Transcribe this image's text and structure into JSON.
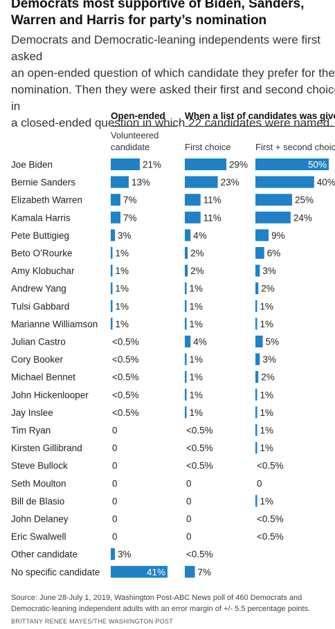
{
  "title": "Democrats most supportive of Biden, Sanders,\nWarren and Harris for party’s nomination",
  "subtitle": "Democrats and Democratic-leaning independents were first asked\nan open-ended question of which candidate they prefer for the\nnomination. Then they were asked their first and second choice in\na closed-ended question in which 22 candidates were named.",
  "chart_data": {
    "type": "bar",
    "groups": [
      {
        "header": "Open-ended"
      },
      {
        "header": "When a list of candidates was given"
      }
    ],
    "categories": [
      "Joe Biden",
      "Bernie Sanders",
      "Elizabeth Warren",
      "Kamala Harris",
      "Pete Buttigieg",
      "Beto O’Rourke",
      "Amy Klobuchar",
      "Andrew Yang",
      "Tulsi Gabbard",
      "Marianne Williamson",
      "Julian Castro",
      "Cory Booker",
      "Michael Bennet",
      "John Hickenlooper",
      "Jay Inslee",
      "Tim Ryan",
      "Kirsten Gillibrand",
      "Steve Bullock",
      "Seth Moulton",
      "Bill de Blasio",
      "John Delaney",
      "Eric Swalwell",
      "Other candidate",
      "No specific candidate"
    ],
    "series": [
      {
        "name": "Volunteered\ncandidate",
        "values": [
          21,
          13,
          7,
          7,
          3,
          1,
          1,
          1,
          1,
          1,
          0.25,
          0.25,
          0.25,
          0.25,
          0.25,
          0,
          0,
          0,
          0,
          0,
          0,
          0,
          3,
          41
        ],
        "labels": [
          "21%",
          "13%",
          "7%",
          "7%",
          "3%",
          "1%",
          "1%",
          "1%",
          "1%",
          "1%",
          "<0.5%",
          "<0.5%",
          "<0.5%",
          "<0.5%",
          "<0.5%",
          "0",
          "0",
          "0",
          "0",
          "0",
          "0",
          "0",
          "3%",
          "41%"
        ]
      },
      {
        "name": "First choice",
        "values": [
          29,
          23,
          11,
          11,
          4,
          2,
          2,
          1,
          1,
          1,
          4,
          1,
          1,
          1,
          1,
          0.25,
          0.25,
          0.25,
          0,
          0,
          0,
          0,
          0.25,
          7
        ],
        "labels": [
          "29%",
          "23%",
          "11%",
          "11%",
          "4%",
          "2%",
          "2%",
          "1%",
          "1%",
          "1%",
          "4%",
          "1%",
          "1%",
          "1%",
          "1%",
          "<0.5%",
          "<0.5%",
          "<0.5%",
          "0",
          "0",
          "0",
          "0",
          "<0.5%",
          "7%"
        ]
      },
      {
        "name": "First + second choice",
        "values": [
          50,
          40,
          25,
          24,
          9,
          6,
          3,
          2,
          1,
          1,
          5,
          3,
          2,
          1,
          1,
          1,
          1,
          0.25,
          0,
          1,
          0.25,
          0.25,
          null,
          null
        ],
        "labels": [
          "50%",
          "40%",
          "25%",
          "24%",
          "9%",
          "6%",
          "3%",
          "2%",
          "1%",
          "1%",
          "5%",
          "3%",
          "2%",
          "1%",
          "1%",
          "1%",
          "1%",
          "<0.5%",
          "0",
          "1%",
          "<0.5%",
          "<0.5%",
          "",
          ""
        ]
      }
    ],
    "colors": {
      "bar": "#1f82c7",
      "label_inside": "#ffffff",
      "label": "#222222"
    }
  },
  "source": "Source: June 28-July 1, 2019, Washington Post-ABC News poll of 460 Democrats and\nDemocratic-leaning independent adults with an error margin of +/- 5.5 percentage points.",
  "credit": "BRITTANY RENEE MAYES/THE WASHINGTON POST"
}
